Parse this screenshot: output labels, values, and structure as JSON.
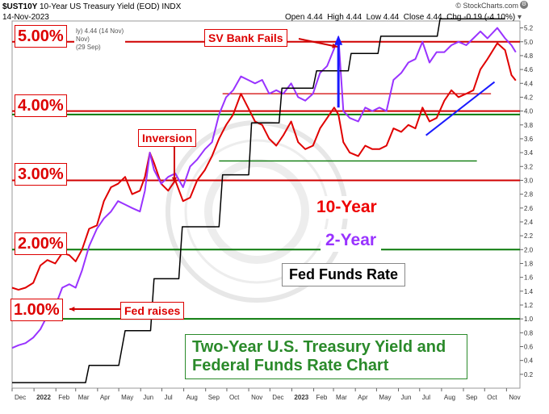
{
  "header": {
    "symbol": "$UST10Y",
    "description": "10-Year US Treasury Yield (EOD)",
    "exchange": "INDX",
    "date": "14-Nov-2023",
    "open": "Open 4.44",
    "high": "High 4.44",
    "low": "Low 4.44",
    "close": "Close 4.44",
    "chg": "Chg -0.19 (-4.10%)",
    "credit": "© StockCharts.com"
  },
  "legend": {
    "line1": "ly) 4.44 (14 Nov)",
    "line2": "Nov)",
    "line3": "(29 Sep)"
  },
  "percent_labels": [
    "5.00%",
    "4.00%",
    "3.00%",
    "2.00%",
    "1.00%"
  ],
  "annotations": {
    "sv_bank": "SV Bank Fails",
    "inversion": "Inversion",
    "fed_raises": "Fed raises"
  },
  "series_labels": {
    "ten_year": "10-Year",
    "two_year": "2-Year",
    "fed_funds": "Fed Funds Rate"
  },
  "title_box": "Two-Year U.S. Treasury Yield and Federal Funds Rate Chart",
  "colors": {
    "ten_year": "#e00000",
    "two_year": "#9933ff",
    "fed_funds": "#000000",
    "red_level": "#d00000",
    "green_level": "#0a7a0a",
    "trend": "#1a1aff"
  },
  "chart_data": {
    "type": "line",
    "ylim": [
      0,
      5.3
    ],
    "xlim": [
      "2021-12-01",
      "2023-11-20"
    ],
    "y_ticks": [
      0.2,
      0.4,
      0.6,
      0.8,
      1.0,
      1.2,
      1.4,
      1.6,
      1.8,
      2.0,
      2.2,
      2.4,
      2.6,
      2.8,
      3.0,
      3.2,
      3.4,
      3.6,
      3.8,
      4.0,
      4.2,
      4.4,
      4.6,
      4.8,
      5.0,
      5.2
    ],
    "y_tick_labels": [
      "0.2",
      "0.4",
      "0.6",
      "0.8",
      "1.0",
      "1.2",
      "1.4",
      "1.6",
      "1.8",
      "2.0",
      "2.2",
      "2.4",
      "2.6",
      "2.8",
      "3.0",
      "3.2",
      "3.4",
      "3.6",
      "3.8",
      "4.0",
      "4.2",
      "4.4",
      "4.6",
      "4.8",
      "5.0",
      "5.2"
    ],
    "x_ticks": [
      {
        "date": "2021-12-01",
        "label": "Dec",
        "bold": false
      },
      {
        "date": "2022-01-01",
        "label": "2022",
        "bold": true
      },
      {
        "date": "2022-02-01",
        "label": "Feb",
        "bold": false
      },
      {
        "date": "2022-03-01",
        "label": "Mar",
        "bold": false
      },
      {
        "date": "2022-04-01",
        "label": "Apr",
        "bold": false
      },
      {
        "date": "2022-05-01",
        "label": "May",
        "bold": false
      },
      {
        "date": "2022-06-01",
        "label": "Jun",
        "bold": false
      },
      {
        "date": "2022-07-01",
        "label": "Jul",
        "bold": false
      },
      {
        "date": "2022-08-01",
        "label": "Aug",
        "bold": false
      },
      {
        "date": "2022-09-01",
        "label": "Sep",
        "bold": false
      },
      {
        "date": "2022-10-01",
        "label": "Oct",
        "bold": false
      },
      {
        "date": "2022-11-01",
        "label": "Nov",
        "bold": false
      },
      {
        "date": "2022-12-01",
        "label": "Dec",
        "bold": false
      },
      {
        "date": "2023-01-01",
        "label": "2023",
        "bold": true
      },
      {
        "date": "2023-02-01",
        "label": "Feb",
        "bold": false
      },
      {
        "date": "2023-03-01",
        "label": "Mar",
        "bold": false
      },
      {
        "date": "2023-04-01",
        "label": "Apr",
        "bold": false
      },
      {
        "date": "2023-05-01",
        "label": "May",
        "bold": false
      },
      {
        "date": "2023-06-01",
        "label": "Jun",
        "bold": false
      },
      {
        "date": "2023-07-01",
        "label": "Jul",
        "bold": false
      },
      {
        "date": "2023-08-01",
        "label": "Aug",
        "bold": false
      },
      {
        "date": "2023-09-01",
        "label": "Sep",
        "bold": false
      },
      {
        "date": "2023-10-01",
        "label": "Oct",
        "bold": false
      },
      {
        "date": "2023-11-01",
        "label": "Nov",
        "bold": false
      }
    ],
    "red_levels": [
      5.0,
      4.0,
      3.0
    ],
    "green_levels": [
      3.95,
      2.0,
      1.0
    ],
    "short_levels": [
      {
        "value": 4.25,
        "color": "red",
        "from": "2022-09-25",
        "to": "2023-10-10"
      },
      {
        "value": 3.28,
        "color": "green",
        "from": "2022-09-20",
        "to": "2023-09-20"
      }
    ],
    "trend_line": {
      "from": [
        "2023-07-10",
        3.65
      ],
      "to": [
        "2023-10-15",
        4.42
      ]
    },
    "svb_spike": {
      "date": "2023-03-08",
      "from": 4.05,
      "to": 5.07
    },
    "series": [
      {
        "name": "10-Year",
        "x": [
          "2021-12-01",
          "2021-12-10",
          "2021-12-20",
          "2021-12-31",
          "2022-01-10",
          "2022-01-20",
          "2022-01-31",
          "2022-02-10",
          "2022-02-20",
          "2022-03-01",
          "2022-03-10",
          "2022-03-20",
          "2022-03-31",
          "2022-04-10",
          "2022-04-20",
          "2022-04-30",
          "2022-05-10",
          "2022-05-20",
          "2022-05-31",
          "2022-06-07",
          "2022-06-14",
          "2022-06-20",
          "2022-06-30",
          "2022-07-10",
          "2022-07-20",
          "2022-07-31",
          "2022-08-10",
          "2022-08-20",
          "2022-08-31",
          "2022-09-10",
          "2022-09-20",
          "2022-09-30",
          "2022-10-10",
          "2022-10-21",
          "2022-10-31",
          "2022-11-10",
          "2022-11-20",
          "2022-11-30",
          "2022-12-10",
          "2022-12-20",
          "2022-12-31",
          "2023-01-10",
          "2023-01-20",
          "2023-01-31",
          "2023-02-10",
          "2023-02-20",
          "2023-03-02",
          "2023-03-08",
          "2023-03-15",
          "2023-03-24",
          "2023-04-05",
          "2023-04-15",
          "2023-04-25",
          "2023-05-05",
          "2023-05-15",
          "2023-05-25",
          "2023-06-05",
          "2023-06-15",
          "2023-06-25",
          "2023-07-05",
          "2023-07-15",
          "2023-07-25",
          "2023-08-05",
          "2023-08-15",
          "2023-08-25",
          "2023-09-05",
          "2023-09-15",
          "2023-09-25",
          "2023-10-05",
          "2023-10-19",
          "2023-10-30",
          "2023-11-08",
          "2023-11-14"
        ],
        "y": [
          1.45,
          1.42,
          1.45,
          1.52,
          1.77,
          1.85,
          1.8,
          1.95,
          1.92,
          1.83,
          2.0,
          2.3,
          2.35,
          2.7,
          2.9,
          2.95,
          3.05,
          2.8,
          2.85,
          3.05,
          3.4,
          3.25,
          2.95,
          2.85,
          3.0,
          2.7,
          2.75,
          3.0,
          3.15,
          3.35,
          3.6,
          3.8,
          3.95,
          4.25,
          4.05,
          3.85,
          3.8,
          3.6,
          3.5,
          3.65,
          3.85,
          3.55,
          3.45,
          3.5,
          3.75,
          3.9,
          4.05,
          3.95,
          3.55,
          3.4,
          3.35,
          3.5,
          3.45,
          3.45,
          3.5,
          3.75,
          3.7,
          3.8,
          3.75,
          4.05,
          3.85,
          3.9,
          4.15,
          4.3,
          4.2,
          4.25,
          4.3,
          4.6,
          4.75,
          4.98,
          4.88,
          4.52,
          4.44
        ]
      },
      {
        "name": "2-Year",
        "x": [
          "2021-12-01",
          "2021-12-10",
          "2021-12-20",
          "2021-12-31",
          "2022-01-10",
          "2022-01-20",
          "2022-01-31",
          "2022-02-10",
          "2022-02-20",
          "2022-03-01",
          "2022-03-10",
          "2022-03-20",
          "2022-03-31",
          "2022-04-10",
          "2022-04-20",
          "2022-04-30",
          "2022-05-10",
          "2022-05-20",
          "2022-05-31",
          "2022-06-07",
          "2022-06-14",
          "2022-06-20",
          "2022-06-30",
          "2022-07-10",
          "2022-07-20",
          "2022-07-31",
          "2022-08-10",
          "2022-08-20",
          "2022-08-31",
          "2022-09-10",
          "2022-09-20",
          "2022-09-30",
          "2022-10-10",
          "2022-10-21",
          "2022-10-31",
          "2022-11-10",
          "2022-11-20",
          "2022-11-30",
          "2022-12-10",
          "2022-12-20",
          "2022-12-31",
          "2023-01-10",
          "2023-01-20",
          "2023-01-31",
          "2023-02-10",
          "2023-02-20",
          "2023-03-02",
          "2023-03-08",
          "2023-03-15",
          "2023-03-24",
          "2023-04-05",
          "2023-04-15",
          "2023-04-25",
          "2023-05-05",
          "2023-05-15",
          "2023-05-25",
          "2023-06-05",
          "2023-06-15",
          "2023-06-25",
          "2023-07-05",
          "2023-07-15",
          "2023-07-25",
          "2023-08-05",
          "2023-08-15",
          "2023-08-25",
          "2023-09-05",
          "2023-09-15",
          "2023-09-25",
          "2023-10-05",
          "2023-10-19",
          "2023-10-30",
          "2023-11-08",
          "2023-11-14"
        ],
        "y": [
          0.58,
          0.62,
          0.65,
          0.73,
          0.85,
          1.05,
          1.18,
          1.45,
          1.5,
          1.45,
          1.7,
          2.05,
          2.3,
          2.45,
          2.55,
          2.7,
          2.65,
          2.6,
          2.55,
          2.85,
          3.4,
          3.15,
          2.95,
          3.05,
          3.1,
          2.9,
          3.2,
          3.3,
          3.45,
          3.55,
          3.95,
          4.2,
          4.3,
          4.5,
          4.45,
          4.4,
          4.45,
          4.25,
          4.3,
          4.25,
          4.4,
          4.2,
          4.15,
          4.25,
          4.55,
          4.65,
          4.9,
          5.07,
          4.0,
          3.9,
          3.85,
          4.05,
          4.0,
          4.05,
          4.0,
          4.45,
          4.55,
          4.7,
          4.75,
          5.0,
          4.7,
          4.85,
          4.85,
          4.95,
          5.0,
          4.95,
          5.05,
          5.15,
          5.05,
          5.2,
          5.05,
          4.95,
          4.85
        ]
      },
      {
        "name": "Fed Funds Rate",
        "x": [
          "2021-12-01",
          "2022-03-15",
          "2022-03-20",
          "2022-05-01",
          "2022-05-10",
          "2022-06-15",
          "2022-06-20",
          "2022-07-25",
          "2022-07-30",
          "2022-09-20",
          "2022-09-25",
          "2022-11-01",
          "2022-11-05",
          "2022-12-14",
          "2022-12-18",
          "2023-01-31",
          "2023-02-05",
          "2023-03-22",
          "2023-03-26",
          "2023-05-03",
          "2023-05-07",
          "2023-07-26",
          "2023-07-30",
          "2023-10-30"
        ],
        "y": [
          0.08,
          0.08,
          0.33,
          0.33,
          0.83,
          0.83,
          1.58,
          1.58,
          2.33,
          2.33,
          3.08,
          3.08,
          3.83,
          3.83,
          4.33,
          4.33,
          4.58,
          4.58,
          4.83,
          4.83,
          5.08,
          5.08,
          5.33,
          5.33
        ]
      }
    ]
  }
}
